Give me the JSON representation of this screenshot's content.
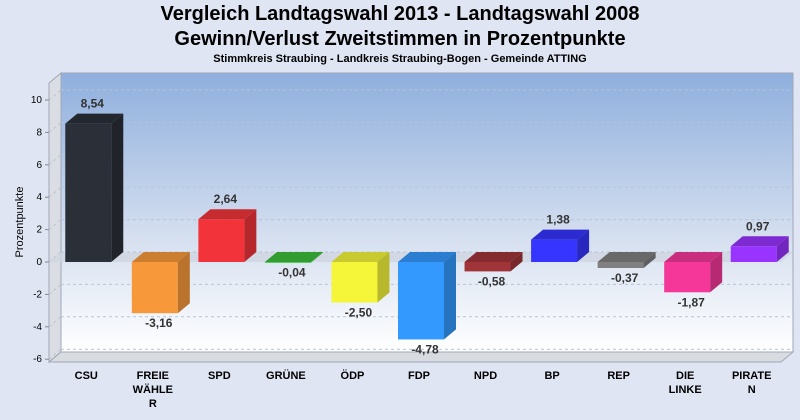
{
  "chart_data": {
    "type": "bar",
    "title": "Vergleich Landtagswahl 2013 - Landtagswahl 2008",
    "subtitle": "Gewinn/Verlust Zweitstimmen in Prozentpunkte",
    "subsubtitle": "Stimmkreis Straubing - Landkreis Straubing-Bogen - Gemeinde ATTING",
    "xlabel": "",
    "ylabel": "Prozentpunkte",
    "ylim": [
      -6.8,
      10.8
    ],
    "yticks": [
      10,
      8,
      6,
      4,
      2,
      0,
      -2,
      -4,
      -6
    ],
    "grid": true,
    "legend": "none",
    "categories": [
      "CSU",
      "FREIE WÄHLER",
      "SPD",
      "GRÜNE",
      "ÖDP",
      "FDP",
      "NPD",
      "BP",
      "REP",
      "DIE LINKE",
      "PIRATEN"
    ],
    "category_label_lines": [
      [
        "CSU"
      ],
      [
        "FREIE",
        "WÄHLE",
        "R"
      ],
      [
        "SPD"
      ],
      [
        "GRÜNE"
      ],
      [
        "ÖDP"
      ],
      [
        "FDP"
      ],
      [
        "NPD"
      ],
      [
        "BP"
      ],
      [
        "REP"
      ],
      [
        "DIE",
        "LINKE"
      ],
      [
        "PIRATE",
        "N"
      ]
    ],
    "values": [
      8.54,
      -3.16,
      2.64,
      -0.04,
      -2.5,
      -4.78,
      -0.58,
      1.38,
      -0.37,
      -1.87,
      0.97
    ],
    "value_labels": [
      "8,54",
      "-3,16",
      "2,64",
      "-0,04",
      "-2,50",
      "-4,78",
      "-0,58",
      "1,38",
      "-0,37",
      "-1,87",
      "0,97"
    ],
    "colors": [
      "#2b2f38",
      "#f7993a",
      "#f2343a",
      "#3cc03c",
      "#f5f53a",
      "#3399ff",
      "#a03438",
      "#3535ff",
      "#808080",
      "#f5379a",
      "#9933ff"
    ]
  }
}
